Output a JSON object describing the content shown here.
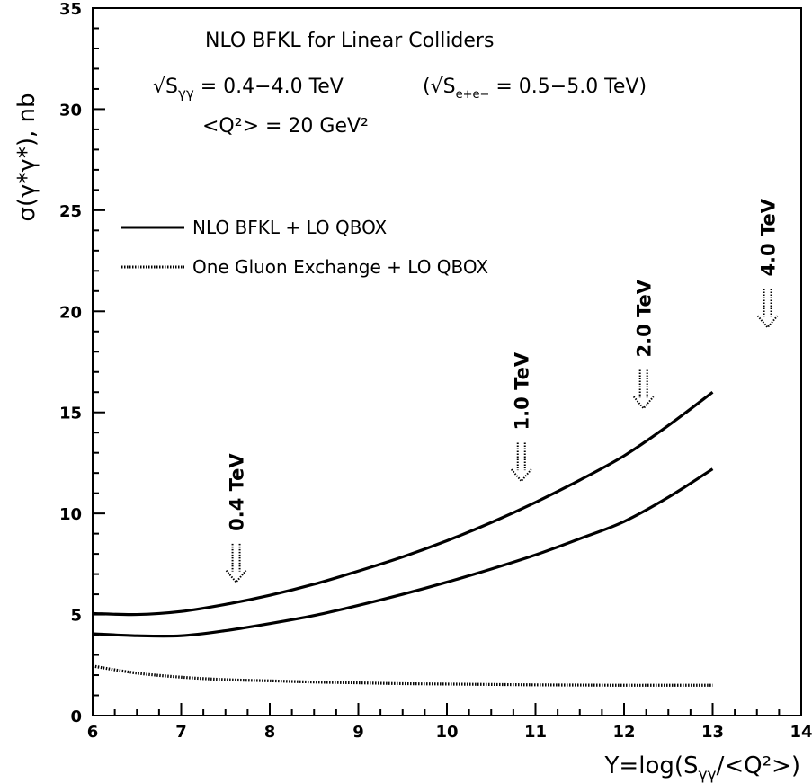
{
  "chart_data": {
    "type": "line",
    "xlabel": {
      "prefix": "Y=log(S",
      "sub": "γγ",
      "suffix": "/<Q²>)"
    },
    "ylabel": "σ(γ*γ*), nb",
    "xlim": [
      6,
      14
    ],
    "ylim": [
      0,
      35
    ],
    "xticks": [
      "6",
      "7",
      "8",
      "9",
      "10",
      "11",
      "12",
      "13",
      "14"
    ],
    "yticks": [
      "0",
      "5",
      "10",
      "15",
      "20",
      "25",
      "30",
      "35"
    ],
    "annotations": {
      "title": "NLO BFKL for Linear Colliders",
      "energy_gg": {
        "root": "√S",
        "sub": "γγ",
        "value": " = 0.4−4.0 TeV"
      },
      "energy_ee": {
        "open": "(√S",
        "sub": "e+e−",
        "value": " = 0.5−5.0 TeV)"
      },
      "q2": "<Q²> = 20 GeV²"
    },
    "legend": [
      {
        "label": "NLO BFKL + LO QBOX",
        "style": "solid"
      },
      {
        "label": "One Gluon Exchange + LO QBOX",
        "style": "dotted"
      }
    ],
    "series": [
      {
        "label_ref": 0,
        "style": "solid",
        "x": [
          6.0,
          6.5,
          7.0,
          7.5,
          8.0,
          8.5,
          9.0,
          9.5,
          10.0,
          10.5,
          11.0,
          11.5,
          12.0,
          12.5,
          13.0
        ],
        "values": [
          5.05,
          5.0,
          5.15,
          5.5,
          5.95,
          6.5,
          7.15,
          7.85,
          8.65,
          9.55,
          10.55,
          11.65,
          12.85,
          14.35,
          16.0
        ]
      },
      {
        "label_ref": 0,
        "style": "solid",
        "x": [
          6.0,
          6.5,
          7.0,
          7.5,
          8.0,
          8.5,
          9.0,
          9.5,
          10.0,
          10.5,
          11.0,
          11.5,
          12.0,
          12.5,
          13.0
        ],
        "values": [
          4.05,
          3.95,
          3.95,
          4.2,
          4.55,
          4.95,
          5.45,
          6.0,
          6.6,
          7.25,
          7.95,
          8.75,
          9.6,
          10.8,
          12.2
        ]
      },
      {
        "label_ref": 1,
        "style": "dotted",
        "x": [
          6.0,
          6.5,
          7.0,
          7.5,
          8.0,
          8.5,
          9.0,
          9.5,
          10.0,
          10.5,
          11.0,
          11.5,
          12.0,
          12.5,
          13.0
        ],
        "values": [
          2.45,
          2.1,
          1.9,
          1.78,
          1.72,
          1.66,
          1.62,
          1.58,
          1.56,
          1.54,
          1.52,
          1.51,
          1.5,
          1.5,
          1.5
        ]
      }
    ],
    "energy_markers": [
      {
        "label": "0.4 TeV",
        "x": 7.62,
        "arrow_top": 8.5,
        "arrow_bottom": 6.6
      },
      {
        "label": "1.0 TeV",
        "x": 10.84,
        "arrow_top": 13.5,
        "arrow_bottom": 11.6
      },
      {
        "label": "2.0 TeV",
        "x": 12.22,
        "arrow_top": 17.1,
        "arrow_bottom": 15.2
      },
      {
        "label": "4.0 TeV",
        "x": 13.62,
        "arrow_top": 21.1,
        "arrow_bottom": 19.2
      }
    ]
  }
}
